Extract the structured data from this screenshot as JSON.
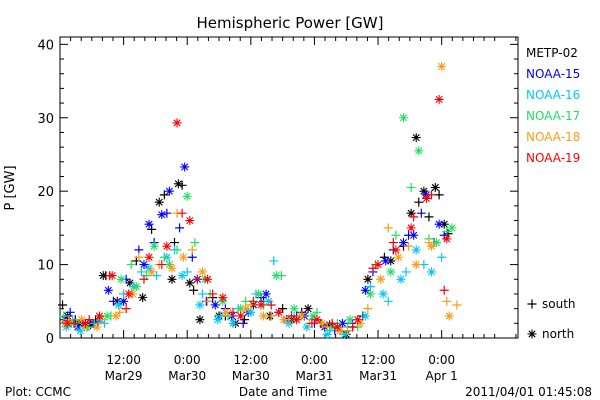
{
  "chart_data": {
    "type": "scatter",
    "title": "Hemispheric Power [GW]",
    "ylabel": "P [GW]",
    "xlabel": "Date and Time",
    "ylim": [
      0,
      41
    ],
    "xlim": [
      0,
      3.6
    ],
    "yticks": [
      0,
      10,
      20,
      30,
      40
    ],
    "xticks": [
      {
        "x": 0.5,
        "time": "12:00",
        "date": "Mar29"
      },
      {
        "x": 1.0,
        "time": "0:00",
        "date": "Mar30"
      },
      {
        "x": 1.5,
        "time": "12:00",
        "date": "Mar30"
      },
      {
        "x": 2.0,
        "time": "0:00",
        "date": "Mar31"
      },
      {
        "x": 2.5,
        "time": "12:00",
        "date": "Mar31"
      },
      {
        "x": 3.0,
        "time": "0:00",
        "date": "Apr 1"
      }
    ],
    "x_unit_note": "x in days since Mar 29 00:00 (day tick marks at 0:00)",
    "marker_legend": [
      {
        "symbol": "+",
        "label": "south"
      },
      {
        "symbol": "*",
        "label": "north"
      }
    ],
    "series": [
      {
        "name": "METP-02",
        "color": "#000000",
        "south": [
          [
            0.02,
            4.5
          ],
          [
            0.12,
            2.5
          ],
          [
            0.2,
            2.0
          ],
          [
            0.28,
            2.5
          ],
          [
            0.36,
            8.5
          ],
          [
            0.6,
            10.5
          ],
          [
            0.72,
            14.8
          ],
          [
            0.82,
            19.5
          ],
          [
            0.9,
            13.0
          ],
          [
            0.96,
            20.8
          ],
          [
            1.05,
            6.5
          ],
          [
            1.2,
            5.5
          ],
          [
            1.3,
            3.0
          ],
          [
            1.45,
            2.5
          ],
          [
            1.6,
            5.0
          ],
          [
            1.75,
            4.0
          ],
          [
            1.9,
            3.5
          ],
          [
            2.05,
            2.0
          ],
          [
            2.2,
            1.0
          ],
          [
            2.3,
            1.5
          ],
          [
            2.38,
            3.0
          ],
          [
            2.55,
            11.0
          ],
          [
            2.7,
            12.5
          ],
          [
            2.82,
            18.5
          ],
          [
            2.9,
            16.5
          ],
          [
            2.98,
            19.5
          ],
          [
            3.05,
            14.2
          ]
        ],
        "north": [
          [
            0.06,
            3.0
          ],
          [
            0.15,
            2.0
          ],
          [
            0.24,
            1.8
          ],
          [
            0.34,
            8.5
          ],
          [
            0.45,
            5.0
          ],
          [
            0.55,
            7.5
          ],
          [
            0.65,
            5.5
          ],
          [
            0.78,
            18.5
          ],
          [
            0.88,
            8.0
          ],
          [
            0.93,
            21.0
          ],
          [
            1.02,
            7.5
          ],
          [
            1.1,
            2.5
          ],
          [
            1.25,
            3.0
          ],
          [
            1.38,
            2.0
          ],
          [
            1.52,
            4.5
          ],
          [
            1.65,
            3.0
          ],
          [
            1.82,
            2.5
          ],
          [
            1.95,
            4.0
          ],
          [
            2.12,
            1.8
          ],
          [
            2.25,
            0.5
          ],
          [
            2.42,
            8.0
          ],
          [
            2.6,
            10.5
          ],
          [
            2.76,
            17.0
          ],
          [
            2.8,
            27.3
          ],
          [
            2.86,
            20.0
          ],
          [
            2.95,
            20.5
          ],
          [
            3.02,
            15.5
          ]
        ]
      },
      {
        "name": "NOAA-15",
        "color": "#0000ff",
        "south": [
          [
            0.08,
            3.5
          ],
          [
            0.18,
            2.0
          ],
          [
            0.3,
            2.2
          ],
          [
            0.42,
            5.0
          ],
          [
            0.52,
            8.0
          ],
          [
            0.62,
            12.0
          ],
          [
            0.74,
            13.0
          ],
          [
            0.84,
            17.0
          ],
          [
            0.94,
            15.0
          ],
          [
            1.04,
            11.0
          ],
          [
            1.15,
            5.0
          ],
          [
            1.3,
            4.0
          ],
          [
            1.44,
            2.0
          ],
          [
            1.58,
            5.5
          ],
          [
            1.72,
            3.5
          ],
          [
            1.86,
            3.0
          ],
          [
            2.0,
            2.0
          ],
          [
            2.16,
            1.0
          ],
          [
            2.3,
            2.0
          ],
          [
            2.46,
            9.0
          ],
          [
            2.62,
            12.0
          ],
          [
            2.74,
            14.0
          ],
          [
            2.84,
            17.0
          ],
          [
            2.94,
            13.0
          ],
          [
            3.02,
            14.0
          ]
        ],
        "north": [
          [
            0.04,
            2.5
          ],
          [
            0.14,
            1.5
          ],
          [
            0.26,
            2.0
          ],
          [
            0.38,
            6.5
          ],
          [
            0.5,
            5.0
          ],
          [
            0.66,
            10.0
          ],
          [
            0.7,
            15.5
          ],
          [
            0.8,
            16.8
          ],
          [
            0.86,
            20.0
          ],
          [
            0.98,
            23.3
          ],
          [
            1.08,
            8.0
          ],
          [
            1.22,
            4.5
          ],
          [
            1.35,
            3.0
          ],
          [
            1.48,
            3.5
          ],
          [
            1.62,
            6.0
          ],
          [
            1.78,
            2.5
          ],
          [
            1.92,
            3.0
          ],
          [
            2.08,
            1.5
          ],
          [
            2.22,
            2.0
          ],
          [
            2.4,
            6.5
          ],
          [
            2.56,
            10.5
          ],
          [
            2.7,
            13.0
          ],
          [
            2.78,
            14.0
          ],
          [
            2.88,
            19.5
          ],
          [
            2.98,
            15.5
          ]
        ]
      },
      {
        "name": "NOAA-16",
        "color": "#00c8ff",
        "south": [
          [
            0.1,
            2.5
          ],
          [
            0.22,
            1.5
          ],
          [
            0.35,
            2.0
          ],
          [
            0.5,
            6.0
          ],
          [
            0.64,
            9.0
          ],
          [
            0.76,
            8.5
          ],
          [
            0.9,
            12.0
          ],
          [
            1.0,
            9.0
          ],
          [
            1.12,
            6.0
          ],
          [
            1.26,
            3.0
          ],
          [
            1.4,
            4.0
          ],
          [
            1.54,
            6.0
          ],
          [
            1.68,
            10.5
          ],
          [
            1.84,
            3.0
          ],
          [
            1.98,
            2.5
          ],
          [
            2.12,
            1.0
          ],
          [
            2.26,
            1.5
          ],
          [
            2.44,
            7.0
          ],
          [
            2.58,
            5.0
          ],
          [
            2.72,
            9.0
          ],
          [
            2.86,
            10.0
          ],
          [
            3.0,
            11.0
          ]
        ],
        "north": [
          [
            0.05,
            1.5
          ],
          [
            0.16,
            1.0
          ],
          [
            0.32,
            2.5
          ],
          [
            0.46,
            4.5
          ],
          [
            0.58,
            7.0
          ],
          [
            0.7,
            9.5
          ],
          [
            0.84,
            11.0
          ],
          [
            0.96,
            8.5
          ],
          [
            1.1,
            4.5
          ],
          [
            1.24,
            2.5
          ],
          [
            1.36,
            2.0
          ],
          [
            1.5,
            3.5
          ],
          [
            1.64,
            5.0
          ],
          [
            1.8,
            2.0
          ],
          [
            1.94,
            1.5
          ],
          [
            2.1,
            0.5
          ],
          [
            2.24,
            0.5
          ],
          [
            2.4,
            3.0
          ],
          [
            2.54,
            6.0
          ],
          [
            2.68,
            8.0
          ],
          [
            2.8,
            12.0
          ],
          [
            2.92,
            9.0
          ]
        ]
      },
      {
        "name": "NOAA-17",
        "color": "#20e060",
        "south": [
          [
            0.03,
            3.0
          ],
          [
            0.13,
            2.0
          ],
          [
            0.27,
            2.0
          ],
          [
            0.4,
            3.0
          ],
          [
            0.56,
            10.0
          ],
          [
            0.68,
            8.5
          ],
          [
            0.82,
            11.0
          ],
          [
            0.92,
            12.0
          ],
          [
            1.06,
            13.0
          ],
          [
            1.18,
            6.0
          ],
          [
            1.32,
            3.0
          ],
          [
            1.46,
            5.0
          ],
          [
            1.6,
            4.5
          ],
          [
            1.74,
            8.5
          ],
          [
            1.88,
            3.0
          ],
          [
            2.02,
            3.5
          ],
          [
            2.18,
            2.0
          ],
          [
            2.34,
            1.5
          ],
          [
            2.48,
            10.0
          ],
          [
            2.64,
            14.0
          ],
          [
            2.76,
            20.5
          ],
          [
            2.9,
            13.5
          ],
          [
            3.04,
            14.5
          ]
        ],
        "north": [
          [
            0.09,
            2.0
          ],
          [
            0.21,
            1.5
          ],
          [
            0.37,
            3.0
          ],
          [
            0.48,
            8.0
          ],
          [
            0.6,
            7.0
          ],
          [
            0.74,
            12.5
          ],
          [
            0.86,
            10.0
          ],
          [
            1.0,
            19.3
          ],
          [
            1.14,
            8.0
          ],
          [
            1.28,
            5.0
          ],
          [
            1.42,
            4.0
          ],
          [
            1.56,
            6.0
          ],
          [
            1.7,
            8.5
          ],
          [
            1.84,
            4.0
          ],
          [
            1.99,
            3.0
          ],
          [
            2.14,
            1.5
          ],
          [
            2.28,
            2.5
          ],
          [
            2.44,
            6.0
          ],
          [
            2.6,
            9.0
          ],
          [
            2.7,
            30.0
          ],
          [
            2.82,
            25.5
          ],
          [
            2.96,
            13.0
          ],
          [
            3.08,
            15.0
          ]
        ]
      },
      {
        "name": "NOAA-18",
        "color": "#ff9b14",
        "south": [
          [
            0.07,
            2.5
          ],
          [
            0.19,
            1.5
          ],
          [
            0.33,
            2.5
          ],
          [
            0.47,
            3.5
          ],
          [
            0.62,
            11.0
          ],
          [
            0.78,
            10.0
          ],
          [
            0.92,
            17.0
          ],
          [
            1.04,
            12.0
          ],
          [
            1.16,
            5.0
          ],
          [
            1.34,
            3.5
          ],
          [
            1.5,
            4.5
          ],
          [
            1.66,
            3.0
          ],
          [
            1.8,
            2.5
          ],
          [
            1.96,
            2.0
          ],
          [
            2.1,
            1.5
          ],
          [
            2.26,
            1.0
          ],
          [
            2.42,
            4.0
          ],
          [
            2.58,
            15.0
          ],
          [
            2.74,
            12.5
          ],
          [
            2.9,
            13.0
          ],
          [
            3.04,
            5.0
          ],
          [
            3.12,
            4.5
          ]
        ],
        "north": [
          [
            0.04,
            2.0
          ],
          [
            0.17,
            2.5
          ],
          [
            0.29,
            1.5
          ],
          [
            0.44,
            3.0
          ],
          [
            0.57,
            6.0
          ],
          [
            0.72,
            9.0
          ],
          [
            0.88,
            9.5
          ],
          [
            0.97,
            11.0
          ],
          [
            1.12,
            9.0
          ],
          [
            1.3,
            3.5
          ],
          [
            1.46,
            4.0
          ],
          [
            1.6,
            3.0
          ],
          [
            1.76,
            2.5
          ],
          [
            1.9,
            3.0
          ],
          [
            2.06,
            2.0
          ],
          [
            2.2,
            1.0
          ],
          [
            2.36,
            2.0
          ],
          [
            2.52,
            8.0
          ],
          [
            2.66,
            11.0
          ],
          [
            2.8,
            10.0
          ],
          [
            2.92,
            12.5
          ],
          [
            3.0,
            37.0
          ],
          [
            3.06,
            3.0
          ]
        ]
      },
      {
        "name": "NOAA-19",
        "color": "#ff0000",
        "south": [
          [
            0.11,
            2.0
          ],
          [
            0.23,
            2.5
          ],
          [
            0.39,
            8.5
          ],
          [
            0.52,
            4.0
          ],
          [
            0.66,
            8.0
          ],
          [
            0.8,
            10.0
          ],
          [
            0.96,
            17.0
          ],
          [
            1.08,
            8.0
          ],
          [
            1.2,
            6.0
          ],
          [
            1.36,
            3.5
          ],
          [
            1.52,
            5.0
          ],
          [
            1.66,
            4.5
          ],
          [
            1.82,
            3.0
          ],
          [
            1.98,
            2.0
          ],
          [
            2.14,
            2.0
          ],
          [
            2.3,
            1.5
          ],
          [
            2.46,
            9.5
          ],
          [
            2.62,
            13.0
          ],
          [
            2.78,
            16.5
          ],
          [
            2.92,
            19.5
          ],
          [
            3.02,
            6.5
          ]
        ],
        "north": [
          [
            0.06,
            2.0
          ],
          [
            0.2,
            2.0
          ],
          [
            0.31,
            3.0
          ],
          [
            0.41,
            8.5
          ],
          [
            0.54,
            6.0
          ],
          [
            0.7,
            11.0
          ],
          [
            0.84,
            12.5
          ],
          [
            0.92,
            29.3
          ],
          [
            1.02,
            16.0
          ],
          [
            1.16,
            8.0
          ],
          [
            1.28,
            5.5
          ],
          [
            1.42,
            3.0
          ],
          [
            1.58,
            4.5
          ],
          [
            1.72,
            3.5
          ],
          [
            1.86,
            2.5
          ],
          [
            2.02,
            2.5
          ],
          [
            2.18,
            1.5
          ],
          [
            2.34,
            2.5
          ],
          [
            2.5,
            10.0
          ],
          [
            2.64,
            12.0
          ],
          [
            2.76,
            15.0
          ],
          [
            2.88,
            19.0
          ],
          [
            2.98,
            32.5
          ],
          [
            3.04,
            13.5
          ]
        ]
      }
    ]
  },
  "footer": {
    "left": "Plot: CCMC",
    "right": "2011/04/01 01:45:08"
  }
}
